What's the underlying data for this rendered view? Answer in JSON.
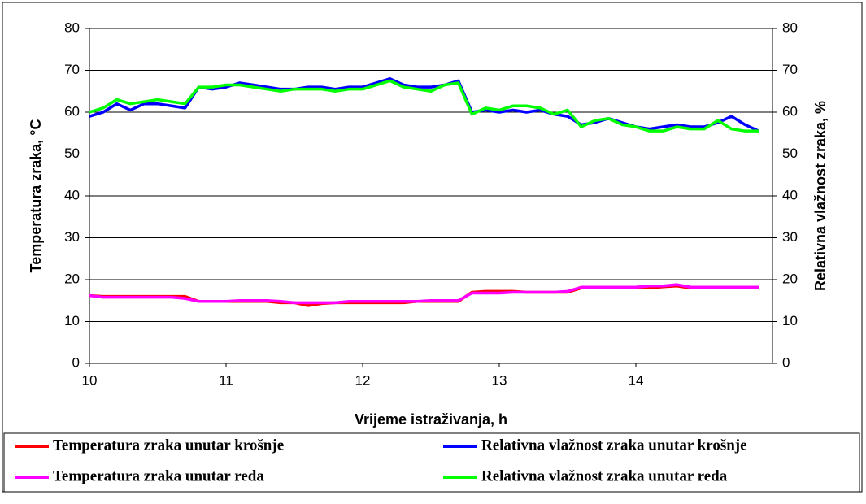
{
  "chart_data": {
    "type": "line",
    "xlabel": "Vrijeme istraživanja, h",
    "ylabel": "Temperatura zraka,  °C",
    "y2label": "Relativna vlažnost zraka, %",
    "xlim": [
      10,
      15
    ],
    "xticks": [
      10,
      11,
      12,
      13,
      14
    ],
    "ylim": [
      0,
      80
    ],
    "yticks": [
      0,
      10,
      20,
      30,
      40,
      50,
      60,
      70,
      80
    ],
    "y2lim": [
      0,
      80
    ],
    "y2ticks": [
      0,
      10,
      20,
      30,
      40,
      50,
      60,
      70,
      80
    ],
    "grid": true,
    "x": [
      10.0,
      10.1,
      10.2,
      10.3,
      10.4,
      10.5,
      10.6,
      10.7,
      10.8,
      10.9,
      11.0,
      11.1,
      11.2,
      11.3,
      11.4,
      11.5,
      11.6,
      11.7,
      11.8,
      11.9,
      12.0,
      12.1,
      12.2,
      12.3,
      12.4,
      12.5,
      12.6,
      12.7,
      12.8,
      12.9,
      13.0,
      13.1,
      13.2,
      13.3,
      13.4,
      13.5,
      13.6,
      13.7,
      13.8,
      13.9,
      14.0,
      14.1,
      14.2,
      14.3,
      14.4,
      14.5,
      14.6,
      14.7,
      14.8,
      14.9
    ],
    "series": [
      {
        "name": "Temperatura zraka unutar krošnje",
        "color": "#ff0000",
        "values": [
          16.2,
          16,
          16,
          16,
          16,
          16,
          16,
          16,
          14.8,
          14.8,
          14.8,
          14.8,
          14.8,
          14.8,
          14.5,
          14.5,
          13.8,
          14.3,
          14.5,
          14.5,
          14.5,
          14.5,
          14.5,
          14.5,
          14.8,
          14.8,
          14.8,
          14.8,
          17,
          17.2,
          17.2,
          17.2,
          17,
          17,
          17,
          17,
          18,
          18,
          18,
          18,
          18,
          18,
          18.3,
          18.5,
          18,
          18,
          18,
          18,
          18,
          18
        ]
      },
      {
        "name": "Relativna vlažnost zraka unutar krošnje",
        "color": "#0000ff",
        "axis": "y2",
        "values": [
          59,
          60,
          62,
          60.5,
          62,
          62,
          61.5,
          61,
          66,
          65.5,
          66,
          67,
          66.5,
          66,
          65.5,
          65.5,
          66,
          66,
          65.5,
          66,
          66,
          67,
          68,
          66.5,
          66,
          66,
          66.5,
          67.5,
          60,
          60.5,
          60,
          60.5,
          60,
          60.5,
          59.5,
          59,
          57,
          57.5,
          58.5,
          57.5,
          56.5,
          56,
          56.5,
          57,
          56.5,
          56.5,
          57.5,
          59,
          57,
          55.5
        ]
      },
      {
        "name": "Temperatura zraka unutar reda",
        "color": "#ff00ff",
        "values": [
          16.2,
          15.8,
          15.8,
          15.8,
          15.8,
          15.8,
          15.8,
          15.5,
          14.8,
          14.8,
          14.8,
          15,
          15,
          15,
          14.8,
          14.5,
          14.5,
          14.5,
          14.5,
          14.8,
          14.8,
          14.8,
          14.8,
          14.8,
          14.8,
          15,
          15,
          15,
          16.8,
          16.8,
          16.8,
          17,
          17,
          17,
          17,
          17.2,
          18.2,
          18.2,
          18.2,
          18.2,
          18.2,
          18.5,
          18.5,
          18.8,
          18.2,
          18.2,
          18.2,
          18.2,
          18.2,
          18.2
        ]
      },
      {
        "name": "Relativna vlažnost zraka unutar reda",
        "color": "#00ff00",
        "axis": "y2",
        "values": [
          60,
          61,
          63,
          62,
          62.5,
          63,
          62.5,
          62,
          66,
          66,
          66.5,
          66.5,
          66,
          65.5,
          65,
          65.5,
          65.5,
          65.5,
          65,
          65.5,
          65.5,
          66.5,
          67.5,
          66,
          65.5,
          65,
          66.5,
          67,
          59.5,
          61,
          60.5,
          61.5,
          61.5,
          61,
          59.5,
          60.5,
          56.5,
          58,
          58.5,
          57,
          56.5,
          55.5,
          55.5,
          56.5,
          56,
          56,
          58,
          56,
          55.5,
          55.5
        ]
      }
    ]
  }
}
